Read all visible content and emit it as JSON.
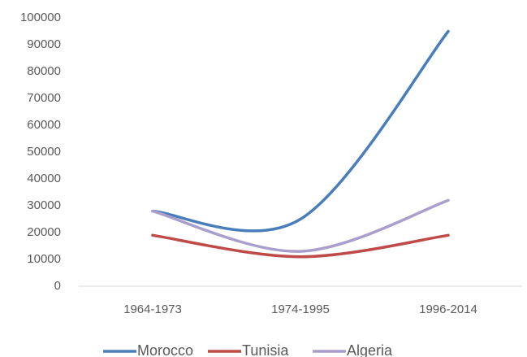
{
  "chart_data": {
    "type": "line",
    "smooth": true,
    "categories": [
      "1964-1973",
      "1974-1995",
      "1996-2014"
    ],
    "series": [
      {
        "name": "Morocco",
        "color": "#4a7ebb",
        "values": [
          28000,
          25000,
          95000
        ]
      },
      {
        "name": "Tunisia",
        "color": "#be4b48",
        "values": [
          19000,
          11000,
          19000
        ]
      },
      {
        "name": "Algeria",
        "color": "#aa9fcc",
        "values": [
          28000,
          13000,
          32000
        ]
      }
    ],
    "ylim": [
      0,
      100000
    ],
    "yticks": [
      0,
      10000,
      20000,
      30000,
      40000,
      50000,
      60000,
      70000,
      80000,
      90000,
      100000
    ],
    "legend": "bottom"
  }
}
